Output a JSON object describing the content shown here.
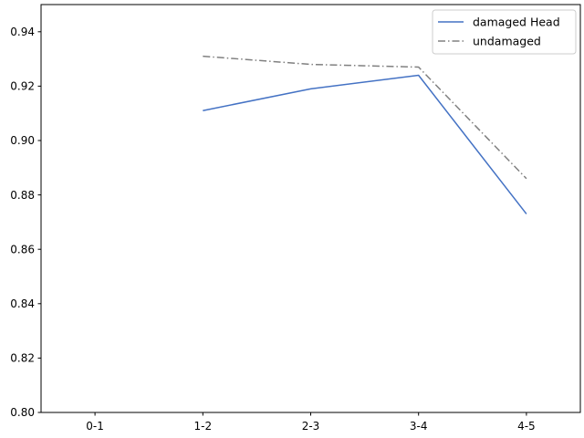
{
  "chart_data": {
    "type": "line",
    "categories": [
      "0-1",
      "1-2",
      "2-3",
      "3-4",
      "4-5"
    ],
    "series": [
      {
        "name": "damaged Head",
        "values": [
          null,
          0.911,
          0.919,
          0.924,
          0.873
        ],
        "color": "#4472c4",
        "line_style": "solid"
      },
      {
        "name": "undamaged",
        "values": [
          null,
          0.931,
          0.928,
          0.927,
          0.886
        ],
        "color": "#808080",
        "line_style": "dash-dot"
      }
    ],
    "title": "",
    "xlabel": "",
    "ylabel": "",
    "ylim": [
      0.8,
      0.95
    ],
    "yticks": [
      0.8,
      0.82,
      0.84,
      0.86,
      0.88,
      0.9,
      0.92,
      0.94
    ],
    "ytick_labels": [
      "0.80",
      "0.82",
      "0.84",
      "0.86",
      "0.88",
      "0.90",
      "0.92",
      "0.94"
    ],
    "grid": false,
    "legend_position": "top-right"
  }
}
